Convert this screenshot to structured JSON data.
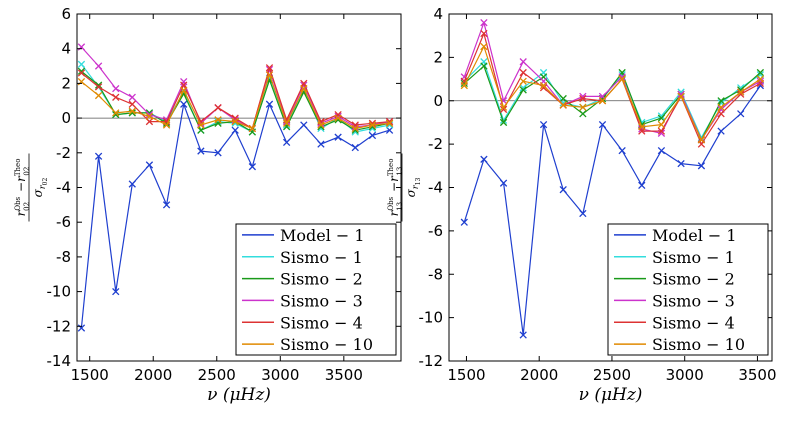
{
  "chart_data": [
    {
      "type": "line",
      "ylabel": "(r02 Obs − r02 Theo) / σ r02",
      "ylabel_parts": {
        "num_a": "r",
        "num_a_sub": "02",
        "num_a_sup": "Obs",
        "minus": "−",
        "num_b": "r",
        "num_b_sub": "02",
        "num_b_sup": "Theo",
        "den": "σ",
        "den_sub": "r",
        "den_subsub": "02"
      },
      "xlabel": "ν (μHz)",
      "xlim": [
        1400,
        3950
      ],
      "ylim": [
        -14,
        6
      ],
      "xticks": [
        1500,
        2000,
        2500,
        3000,
        3500
      ],
      "yticks": [
        6,
        4,
        2,
        0,
        -2,
        -4,
        -6,
        -8,
        -10,
        -12,
        -14
      ],
      "legend_position": "lower-right",
      "series": [
        {
          "name": "Model − 1",
          "color": "#1f3fcf",
          "x": [
            1435,
            1570,
            1705,
            1835,
            1970,
            2105,
            2240,
            2375,
            2510,
            2645,
            2780,
            2915,
            3050,
            3185,
            3320,
            3455,
            3590,
            3725,
            3860
          ],
          "values": [
            -12.1,
            -2.2,
            -10.0,
            -3.8,
            -2.7,
            -5.0,
            0.8,
            -1.9,
            -2.0,
            -0.7,
            -2.8,
            0.8,
            -1.4,
            -0.4,
            -1.5,
            -1.1,
            -1.7,
            -1.0,
            -0.7
          ]
        },
        {
          "name": "Sismo − 1",
          "color": "#33dddd",
          "x": [
            1435,
            1570,
            1705,
            1835,
            1970,
            2105,
            2240,
            2375,
            2510,
            2645,
            2780,
            2915,
            3050,
            3185,
            3320,
            3455,
            3590,
            3725,
            3860
          ],
          "values": [
            3.1,
            1.8,
            0.2,
            0.3,
            0.3,
            -0.2,
            1.5,
            -0.7,
            -0.2,
            -0.3,
            -0.8,
            2.3,
            -0.4,
            1.6,
            -0.6,
            0.0,
            -0.8,
            -0.6,
            -0.4
          ]
        },
        {
          "name": "Sismo − 2",
          "color": "#1a9a1a",
          "x": [
            1435,
            1570,
            1705,
            1835,
            1970,
            2105,
            2240,
            2375,
            2510,
            2645,
            2780,
            2915,
            3050,
            3185,
            3320,
            3455,
            3590,
            3725,
            3860
          ],
          "values": [
            2.7,
            1.9,
            0.2,
            0.3,
            0.3,
            -0.3,
            1.4,
            -0.7,
            -0.3,
            -0.2,
            -0.8,
            2.2,
            -0.5,
            1.5,
            -0.5,
            -0.1,
            -0.7,
            -0.5,
            -0.3
          ]
        },
        {
          "name": "Sismo − 3",
          "color": "#cc33cc",
          "x": [
            1435,
            1570,
            1705,
            1835,
            1970,
            2105,
            2240,
            2375,
            2510,
            2645,
            2780,
            2915,
            3050,
            3185,
            3320,
            3455,
            3590,
            3725,
            3860
          ],
          "values": [
            4.1,
            3.0,
            1.7,
            1.2,
            0.2,
            -0.1,
            2.1,
            -0.3,
            0.6,
            -0.1,
            -0.6,
            2.8,
            -0.2,
            1.9,
            -0.3,
            0.1,
            -0.5,
            -0.4,
            -0.2
          ]
        },
        {
          "name": "Sismo − 4",
          "color": "#dd3333",
          "x": [
            1435,
            1570,
            1705,
            1835,
            1970,
            2105,
            2240,
            2375,
            2510,
            2645,
            2780,
            2915,
            3050,
            3185,
            3320,
            3455,
            3590,
            3725,
            3860
          ],
          "values": [
            2.6,
            1.8,
            1.2,
            0.8,
            -0.2,
            -0.2,
            1.9,
            -0.2,
            0.6,
            -0.0,
            -0.6,
            2.9,
            -0.1,
            2.0,
            -0.2,
            0.2,
            -0.4,
            -0.3,
            -0.2
          ]
        },
        {
          "name": "Sismo − 10",
          "color": "#e08a00",
          "x": [
            1435,
            1570,
            1705,
            1835,
            1970,
            2105,
            2240,
            2375,
            2510,
            2645,
            2780,
            2915,
            3050,
            3185,
            3320,
            3455,
            3590,
            3725,
            3860
          ],
          "values": [
            2.1,
            1.3,
            0.3,
            0.4,
            0.1,
            -0.4,
            1.6,
            -0.4,
            -0.1,
            -0.2,
            -0.6,
            2.5,
            -0.3,
            1.7,
            -0.4,
            0.0,
            -0.6,
            -0.4,
            -0.3
          ]
        }
      ]
    },
    {
      "type": "line",
      "ylabel": "(r13 Obs − r13 Theo) / σ r13",
      "ylabel_parts": {
        "num_a": "r",
        "num_a_sub": "13",
        "num_a_sup": "Obs",
        "minus": "−",
        "num_b": "r",
        "num_b_sub": "13",
        "num_b_sup": "Theo",
        "den": "σ",
        "den_sub": "r",
        "den_subsub": "13"
      },
      "xlabel": "ν (μHz)",
      "xlim": [
        1380,
        3600
      ],
      "ylim": [
        -12,
        4
      ],
      "xticks": [
        1500,
        2000,
        2500,
        3000,
        3500
      ],
      "yticks": [
        4,
        2,
        0,
        -2,
        -4,
        -6,
        -8,
        -10,
        -12
      ],
      "legend_position": "lower-right",
      "series": [
        {
          "name": "Model − 1",
          "color": "#1f3fcf",
          "x": [
            1485,
            1620,
            1755,
            1890,
            2030,
            2165,
            2300,
            2435,
            2570,
            2705,
            2840,
            2975,
            3115,
            3250,
            3385,
            3520
          ],
          "values": [
            -5.6,
            -2.7,
            -3.8,
            -10.8,
            -1.1,
            -4.1,
            -5.2,
            -1.1,
            -2.3,
            -3.9,
            -2.3,
            -2.9,
            -3.0,
            -1.4,
            -0.6,
            0.7
          ]
        },
        {
          "name": "Sismo − 1",
          "color": "#33dddd",
          "x": [
            1485,
            1620,
            1755,
            1890,
            2030,
            2165,
            2300,
            2435,
            2570,
            2705,
            2840,
            2975,
            3115,
            3250,
            3385,
            3520
          ],
          "values": [
            0.9,
            1.8,
            -0.9,
            0.6,
            1.3,
            -0.1,
            -0.3,
            0.1,
            1.2,
            -1.0,
            -0.7,
            0.4,
            -1.7,
            -0.1,
            0.6,
            1.2
          ]
        },
        {
          "name": "Sismo − 2",
          "color": "#1a9a1a",
          "x": [
            1485,
            1620,
            1755,
            1890,
            2030,
            2165,
            2300,
            2435,
            2570,
            2705,
            2840,
            2975,
            3115,
            3250,
            3385,
            3520
          ],
          "values": [
            0.8,
            1.6,
            -1.0,
            0.5,
            1.1,
            0.1,
            -0.6,
            0.1,
            1.3,
            -1.1,
            -0.8,
            0.3,
            -1.8,
            0.0,
            0.5,
            1.3
          ]
        },
        {
          "name": "Sismo − 3",
          "color": "#cc33cc",
          "x": [
            1485,
            1620,
            1755,
            1890,
            2030,
            2165,
            2300,
            2435,
            2570,
            2705,
            2840,
            2975,
            3115,
            3250,
            3385,
            3520
          ],
          "values": [
            1.1,
            3.6,
            0.0,
            1.8,
            0.9,
            -0.2,
            0.2,
            0.2,
            1.1,
            -1.3,
            -1.5,
            0.3,
            -1.8,
            -0.4,
            0.4,
            0.9
          ]
        },
        {
          "name": "Sismo − 4",
          "color": "#dd3333",
          "x": [
            1485,
            1620,
            1755,
            1890,
            2030,
            2165,
            2300,
            2435,
            2570,
            2705,
            2840,
            2975,
            3115,
            3250,
            3385,
            3520
          ],
          "values": [
            0.9,
            3.1,
            -0.4,
            1.3,
            0.6,
            -0.2,
            0.1,
            0.0,
            1.0,
            -1.4,
            -1.4,
            0.2,
            -2.0,
            -0.6,
            0.3,
            0.8
          ]
        },
        {
          "name": "Sismo − 10",
          "color": "#e08a00",
          "x": [
            1485,
            1620,
            1755,
            1890,
            2030,
            2165,
            2300,
            2435,
            2570,
            2705,
            2840,
            2975,
            3115,
            3250,
            3385,
            3520
          ],
          "values": [
            0.7,
            2.5,
            -0.3,
            0.9,
            0.7,
            -0.2,
            -0.3,
            0.0,
            1.0,
            -1.2,
            -1.1,
            0.2,
            -1.8,
            -0.3,
            0.4,
            1.0
          ]
        }
      ]
    }
  ]
}
